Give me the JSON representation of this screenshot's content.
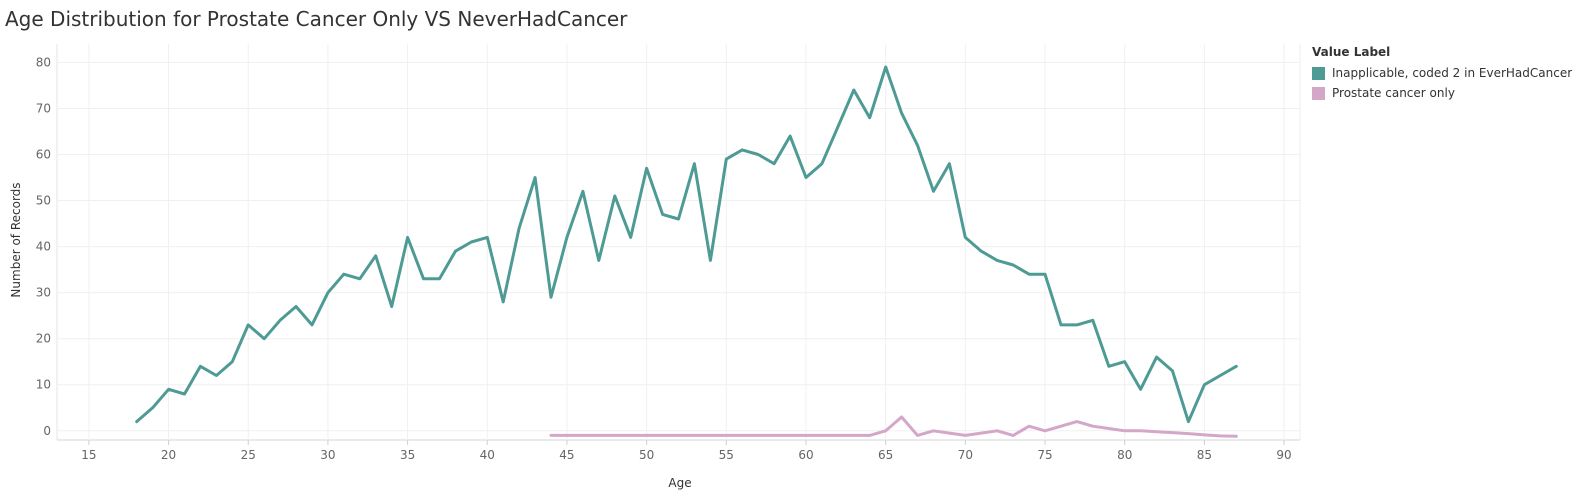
{
  "chart_data": {
    "type": "line",
    "title": "Age Distribution for Prostate Cancer Only VS NeverHadCancer",
    "xlabel": "Age",
    "ylabel": "Number of Records",
    "xlim": [
      13,
      91
    ],
    "ylim": [
      -2,
      84
    ],
    "xticks": [
      15,
      20,
      25,
      30,
      35,
      40,
      45,
      50,
      55,
      60,
      65,
      70,
      75,
      80,
      85,
      90
    ],
    "yticks": [
      0,
      10,
      20,
      30,
      40,
      50,
      60,
      70,
      80
    ],
    "grid": true,
    "legend_title": "Value Label",
    "legend_position": "top-right",
    "series": [
      {
        "name": "Inapplicable, coded 2 in EverHadCancer",
        "color": "#4e9a94",
        "x": [
          18,
          19,
          20,
          21,
          22,
          23,
          24,
          25,
          26,
          27,
          28,
          29,
          30,
          31,
          32,
          33,
          34,
          35,
          36,
          37,
          38,
          39,
          40,
          41,
          42,
          43,
          44,
          45,
          46,
          47,
          48,
          49,
          50,
          51,
          52,
          53,
          54,
          55,
          56,
          57,
          58,
          59,
          60,
          61,
          62,
          63,
          64,
          65,
          66,
          67,
          68,
          69,
          70,
          71,
          72,
          73,
          74,
          75,
          76,
          77,
          78,
          79,
          80,
          81,
          82,
          83,
          84,
          85,
          86,
          87
        ],
        "values": [
          2,
          5,
          9,
          8,
          14,
          12,
          15,
          23,
          20,
          24,
          27,
          23,
          30,
          34,
          33,
          38,
          27,
          42,
          33,
          33,
          39,
          41,
          42,
          28,
          44,
          55,
          29,
          42,
          52,
          37,
          51,
          42,
          57,
          47,
          46,
          58,
          37,
          59,
          61,
          60,
          58,
          64,
          55,
          58,
          66,
          74,
          68,
          79,
          69,
          62,
          52,
          58,
          42,
          39,
          37,
          36,
          34,
          34,
          23,
          23,
          24,
          14,
          15,
          9,
          16,
          13,
          2,
          10,
          12,
          14
        ]
      },
      {
        "name": "Prostate cancer only",
        "color": "#d4a6c8",
        "x": [
          44,
          45,
          46,
          47,
          48,
          49,
          50,
          51,
          52,
          53,
          54,
          55,
          56,
          57,
          58,
          59,
          60,
          61,
          62,
          63,
          64,
          65,
          66,
          67,
          68,
          69,
          70,
          71,
          72,
          73,
          74,
          75,
          76,
          77,
          78,
          79,
          80,
          81,
          82,
          83,
          84,
          85,
          86,
          87
        ],
        "values": [
          -1,
          -1,
          -1,
          -1,
          -1,
          -1,
          -1,
          -1,
          -1,
          -1,
          -1,
          -1,
          -1,
          -1,
          -1,
          -1,
          -1,
          -1,
          -1,
          -1,
          -1,
          0,
          3,
          -1,
          0,
          -0.5,
          -1,
          -0.5,
          0,
          -1,
          1,
          0,
          1,
          2,
          1,
          0.5,
          0,
          0,
          -0.2,
          -0.4,
          -0.6,
          -0.9,
          -1.1,
          -1.2
        ]
      }
    ]
  }
}
